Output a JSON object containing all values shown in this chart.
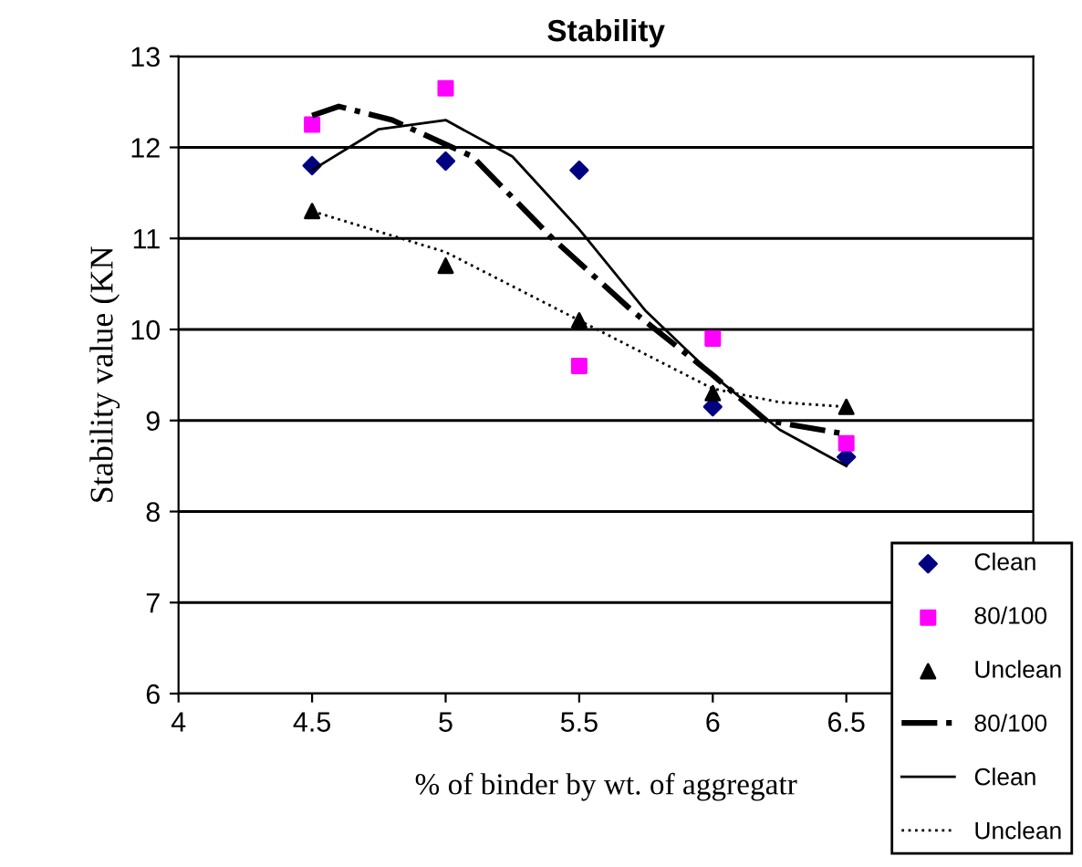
{
  "chart_data": {
    "type": "scatter",
    "title": "Stability",
    "xlabel": "% of binder by wt. of aggregatr",
    "ylabel": "Stability value (KN",
    "xlim": [
      4,
      7.2
    ],
    "xticks": [
      4,
      4.5,
      5,
      5.5,
      6,
      6.5
    ],
    "ylim": [
      6,
      13
    ],
    "yticks": [
      6,
      7,
      8,
      9,
      10,
      11,
      12,
      13
    ],
    "grid": "y",
    "legend": "bottom right",
    "x": [
      4.5,
      5,
      5.5,
      6,
      6.5
    ],
    "series": [
      {
        "name": "Clean",
        "marker": "diamond",
        "color": "#000080",
        "values": [
          11.8,
          11.85,
          11.75,
          9.15,
          8.6
        ]
      },
      {
        "name": "80/100",
        "marker": "square",
        "color": "#ff00ff",
        "values": [
          12.25,
          12.65,
          9.6,
          9.9,
          8.75
        ]
      },
      {
        "name": "Unclean",
        "marker": "triangle",
        "color": "#000000",
        "values": [
          11.3,
          10.7,
          10.1,
          9.3,
          9.15
        ]
      },
      {
        "name": "80/100",
        "type": "line",
        "line_style": "dashdot",
        "color": "#000000",
        "x": [
          4.5,
          4.6,
          4.8,
          5.1,
          5.4,
          5.7,
          6,
          6.2,
          6.5
        ],
        "values": [
          12.35,
          12.45,
          12.3,
          11.9,
          11.0,
          10.2,
          9.5,
          9.0,
          8.85
        ]
      },
      {
        "name": "Clean",
        "type": "line",
        "line_style": "solid",
        "color": "#000000",
        "x": [
          4.5,
          4.75,
          5,
          5.25,
          5.5,
          5.75,
          6,
          6.25,
          6.5
        ],
        "values": [
          11.75,
          12.2,
          12.3,
          11.9,
          11.1,
          10.2,
          9.5,
          8.9,
          8.5
        ]
      },
      {
        "name": "Unclean",
        "type": "line",
        "line_style": "dotted",
        "color": "#000000",
        "x": [
          4.5,
          5,
          5.5,
          6,
          6.25,
          6.5
        ],
        "values": [
          11.3,
          10.85,
          10.1,
          9.35,
          9.2,
          9.15
        ]
      }
    ]
  }
}
